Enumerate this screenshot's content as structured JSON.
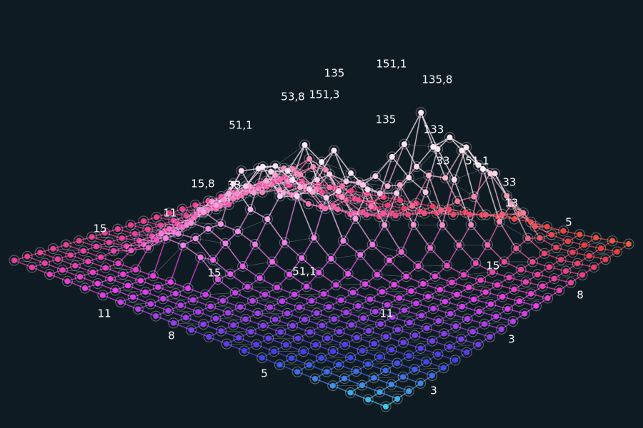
{
  "labels": [
    "135",
    "151,1",
    "135,8",
    "53,8",
    "151,3",
    "51,1",
    "135",
    "133",
    "33",
    "51,1",
    "33",
    "15,8",
    "33",
    "11",
    "13",
    "15",
    "5",
    "15",
    "51,1",
    "15",
    "8",
    "11",
    "11",
    "8",
    "3",
    "5",
    "3"
  ]
}
